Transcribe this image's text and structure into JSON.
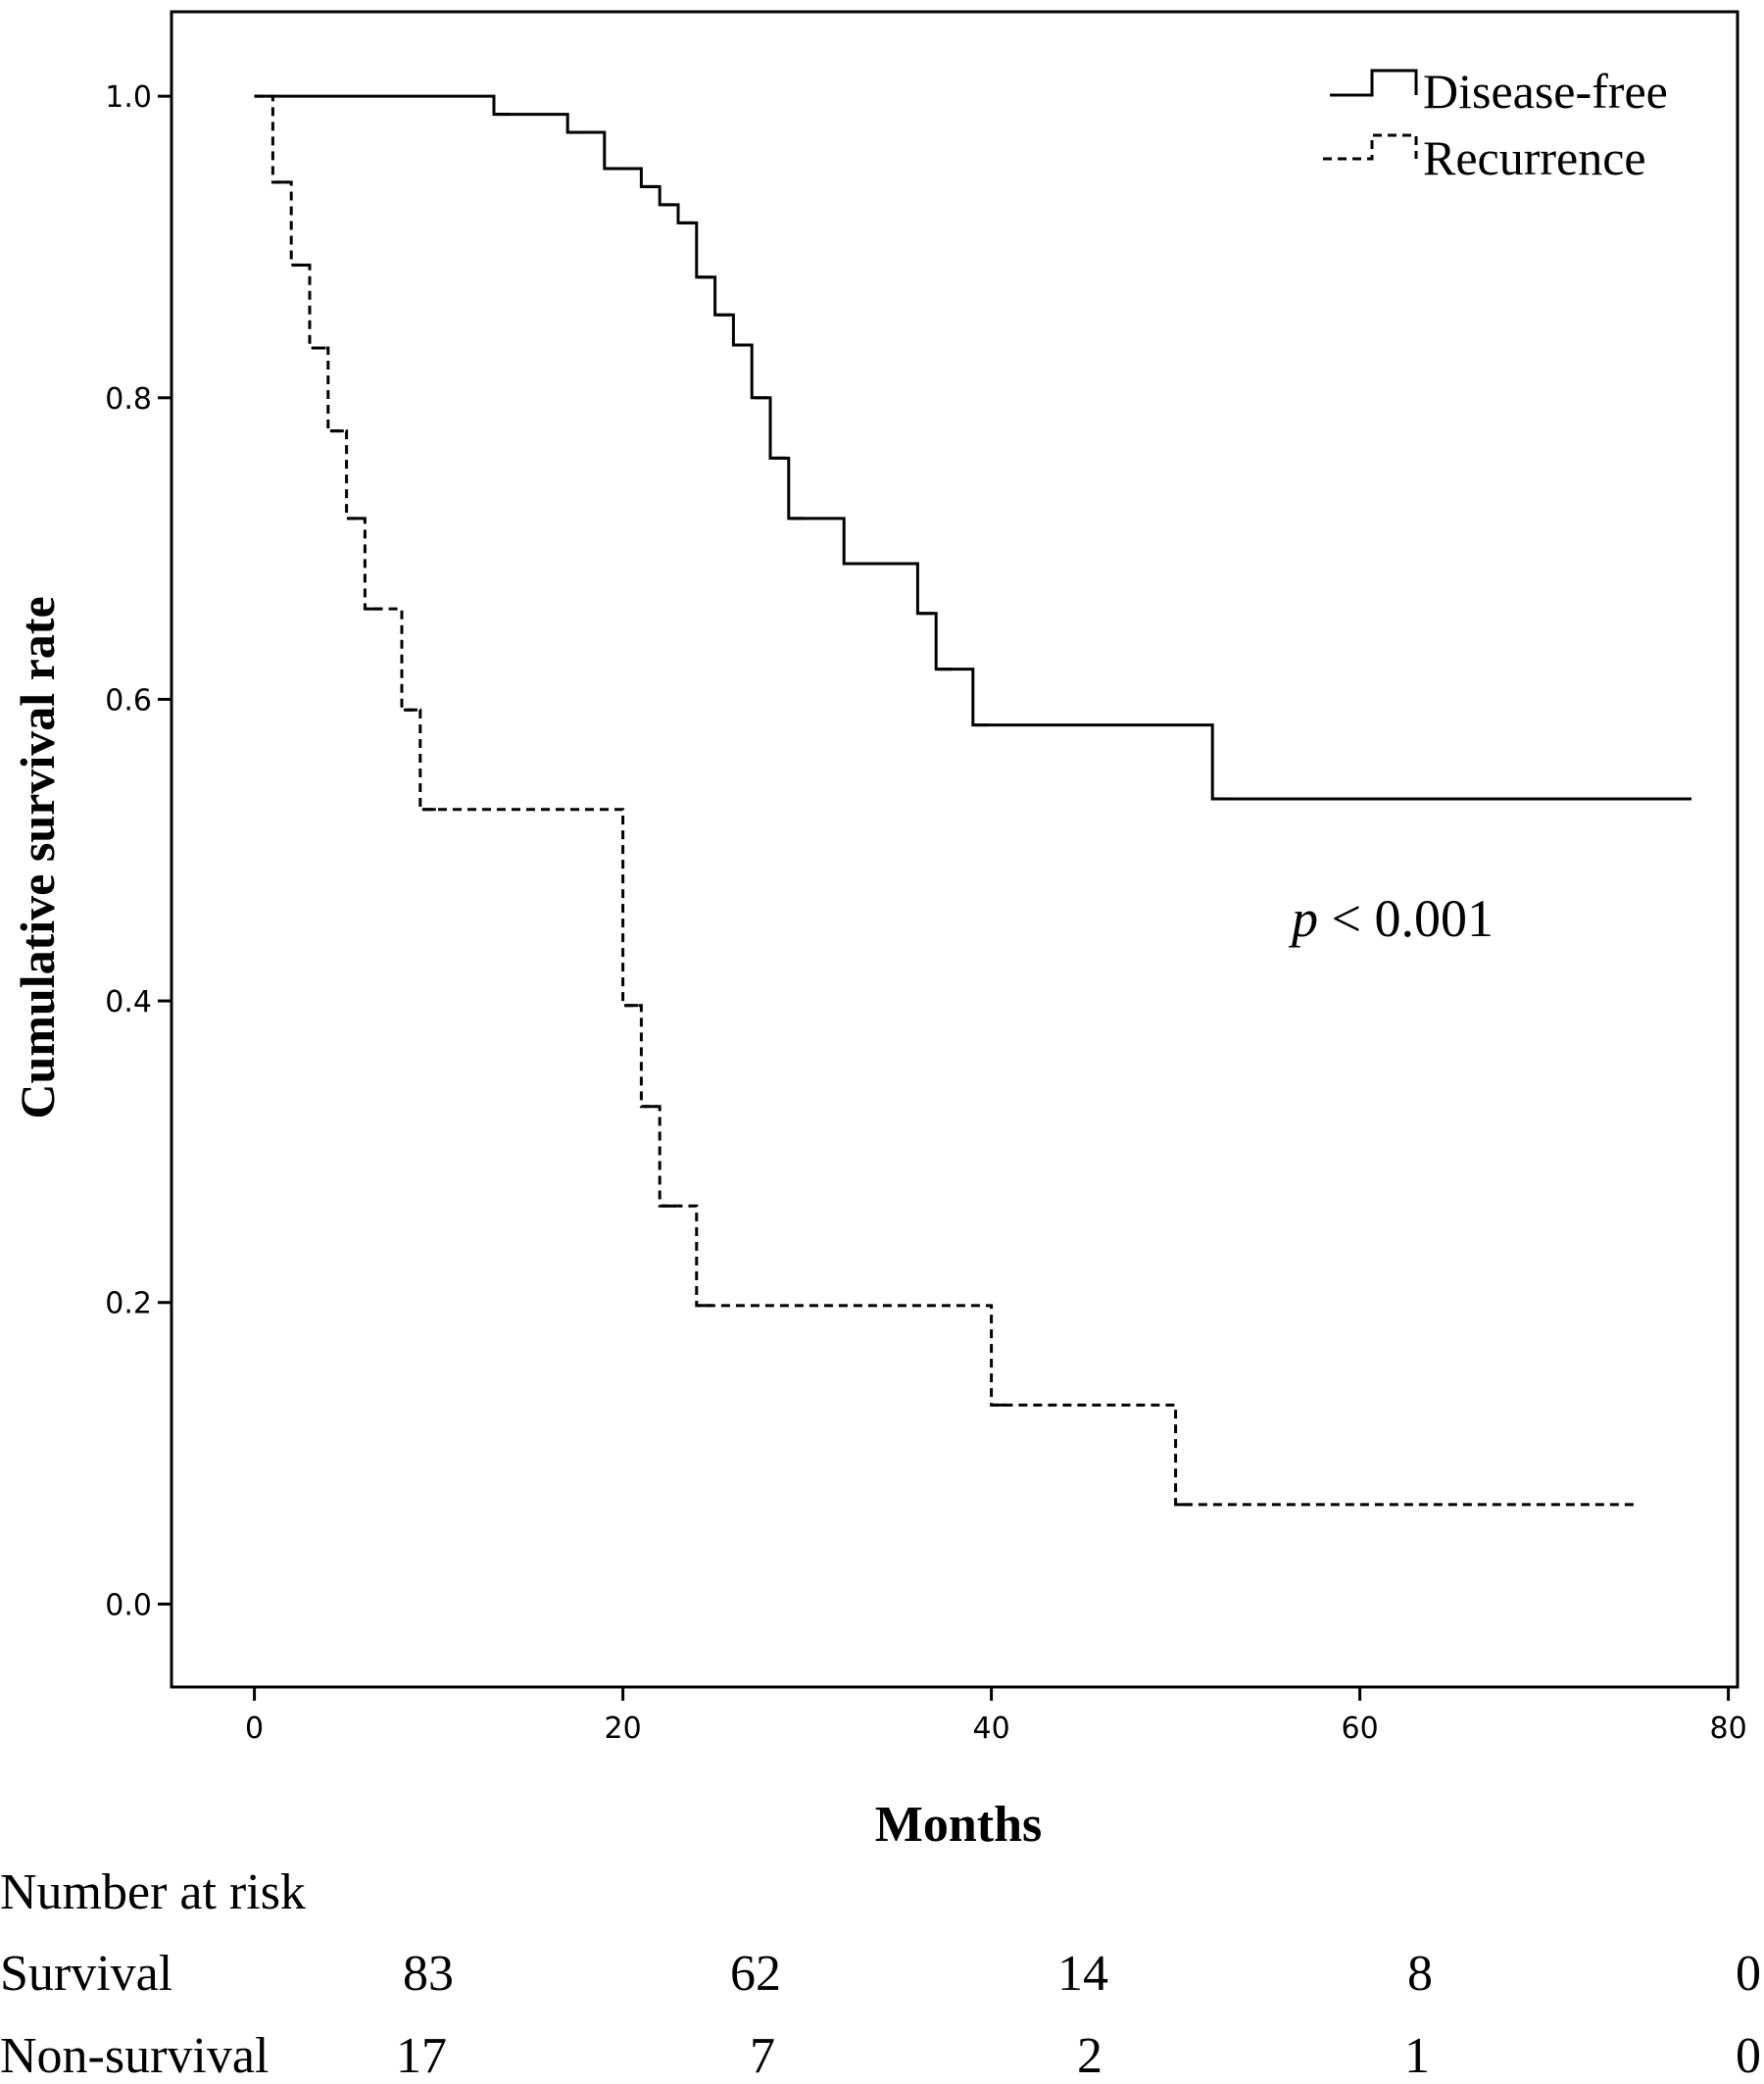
{
  "chart_data": {
    "type": "line",
    "title": "",
    "xlabel": "Months",
    "ylabel": "Cumulative survival rate",
    "xlim": [
      -4.5,
      80.5
    ],
    "ylim": [
      -0.055,
      1.056
    ],
    "xticks": [
      0,
      20,
      40,
      60,
      80
    ],
    "yticks": [
      0.0,
      0.2,
      0.4,
      0.6,
      0.8,
      1.0
    ],
    "xtick_labels": [
      "0",
      "20",
      "40",
      "60",
      "80"
    ],
    "ytick_labels": [
      "0.0",
      "0.2",
      "0.4",
      "0.6",
      "0.8",
      "1.0"
    ],
    "legend_position": "top-right",
    "grid": false,
    "annotation": {
      "prefix": "p",
      "text": " < 0.001"
    },
    "series": [
      {
        "name": "Disease-free",
        "style": "solid",
        "color": "#000000",
        "x": [
          0,
          13,
          17,
          19,
          21,
          22,
          23,
          24,
          25,
          26,
          27,
          28,
          29,
          32,
          36,
          37,
          39,
          52,
          78
        ],
        "y": [
          1.0,
          0.988,
          0.976,
          0.952,
          0.94,
          0.928,
          0.916,
          0.88,
          0.855,
          0.835,
          0.8,
          0.76,
          0.72,
          0.69,
          0.657,
          0.62,
          0.583,
          0.534,
          0.534
        ]
      },
      {
        "name": "Recurrence",
        "style": "dashed",
        "color": "#000000",
        "x": [
          0,
          1,
          2,
          3,
          4,
          5,
          6,
          8,
          9,
          20,
          21,
          22,
          24,
          40,
          50,
          75
        ],
        "y": [
          1.0,
          0.943,
          0.888,
          0.833,
          0.778,
          0.72,
          0.66,
          0.593,
          0.527,
          0.397,
          0.33,
          0.264,
          0.198,
          0.132,
          0.066,
          0.066
        ]
      }
    ]
  },
  "risk_table": {
    "heading": "Number at risk",
    "rows": [
      {
        "label": "Survival",
        "values": [
          "83",
          "62",
          "14",
          "8",
          "0"
        ]
      },
      {
        "label": "Non-survival",
        "values": [
          "17",
          "7",
          "2",
          "1",
          "0"
        ]
      }
    ]
  }
}
